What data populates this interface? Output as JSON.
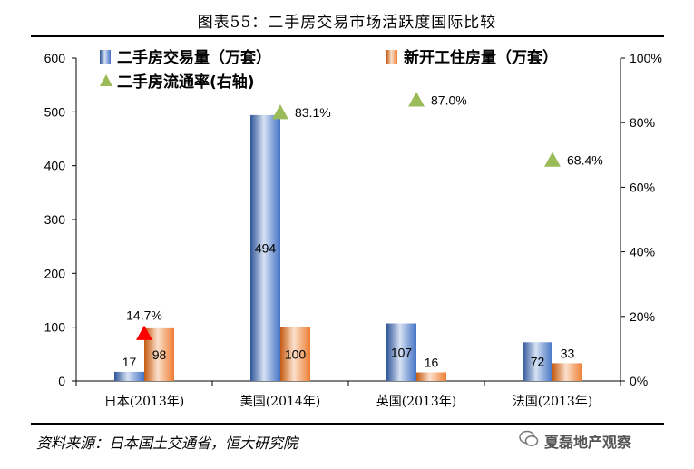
{
  "title": "图表55：二手房交易市场活跃度国际比较",
  "source": "资料来源：日本国土交通省，恒大研究院",
  "watermark": "夏磊地产观察",
  "chart_data": {
    "type": "bar",
    "categories": [
      "日本(2013年)",
      "美国(2014年)",
      "英国(2013年)",
      "法国(2013年)"
    ],
    "series": [
      {
        "name": "二手房交易量（万套）",
        "axis": "left",
        "kind": "bar",
        "color": "#4472C4",
        "values": [
          17,
          494,
          107,
          72
        ]
      },
      {
        "name": "新开工住房量（万套）",
        "axis": "left",
        "kind": "bar",
        "color": "#ED7D31",
        "values": [
          98,
          100,
          16,
          33
        ]
      },
      {
        "name": "二手房流通率(右轴)",
        "axis": "right",
        "kind": "marker",
        "color": "#9BBB59",
        "values": [
          14.7,
          83.1,
          87.0,
          68.4
        ],
        "labels": [
          "14.7%",
          "83.1%",
          "87.0%",
          "68.4%"
        ],
        "highlight_index": 0,
        "highlight_color": "#FF0000"
      }
    ],
    "y_left": {
      "min": 0,
      "max": 600,
      "ticks": [
        "0",
        "100",
        "200",
        "300",
        "400",
        "500",
        "600"
      ]
    },
    "y_right": {
      "min": 0,
      "max": 100,
      "ticks": [
        "0%",
        "20%",
        "40%",
        "60%",
        "80%",
        "100%"
      ]
    },
    "bar_labels": {
      "series0": [
        "17",
        "494",
        "107",
        "72"
      ],
      "series1": [
        "98",
        "100",
        "16",
        "33"
      ]
    },
    "grid": false,
    "legend": "top"
  }
}
